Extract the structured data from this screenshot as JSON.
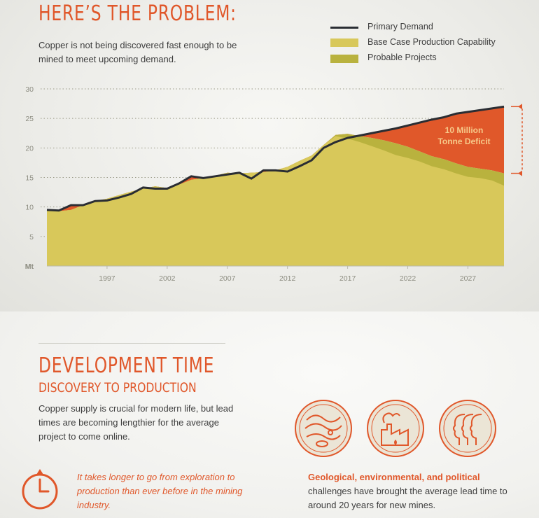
{
  "header": {
    "title": "HERE’S THE PROBLEM:",
    "intro": "Copper is not being discovered fast enough to be mined to meet upcoming demand."
  },
  "legend": [
    {
      "label": "Primary Demand",
      "kind": "line"
    },
    {
      "label": "Base Case Production Capability",
      "kind": "base"
    },
    {
      "label": "Probable Projects",
      "kind": "prob"
    }
  ],
  "chart_data": {
    "type": "area",
    "title": "",
    "xlabel": "",
    "ylabel": "Mt",
    "ylim": [
      0,
      30
    ],
    "xlim": [
      1992,
      2030
    ],
    "yticks": [
      5,
      10,
      15,
      20,
      25,
      30
    ],
    "xticks": [
      1997,
      2002,
      2007,
      2012,
      2017,
      2022,
      2027
    ],
    "grid": true,
    "grid_style": "dotted",
    "legend_position": "top-right",
    "colors": {
      "primary_demand": "#2a2d33",
      "base_case": "#d8c85a",
      "probable_projects": "#b9b23e",
      "deficit": "#e0582a"
    },
    "x": [
      1992,
      1993,
      1994,
      1995,
      1996,
      1997,
      1998,
      1999,
      2000,
      2001,
      2002,
      2003,
      2004,
      2005,
      2006,
      2007,
      2008,
      2009,
      2010,
      2011,
      2012,
      2013,
      2014,
      2015,
      2016,
      2017,
      2018,
      2019,
      2020,
      2021,
      2022,
      2023,
      2024,
      2025,
      2026,
      2027,
      2028,
      2029,
      2030
    ],
    "series": [
      {
        "name": "Primary Demand",
        "type": "line",
        "values": [
          9.5,
          9.4,
          10.3,
          10.3,
          11.0,
          11.1,
          11.6,
          12.2,
          13.3,
          13.1,
          13.1,
          14.0,
          15.2,
          14.9,
          15.2,
          15.5,
          15.8,
          14.8,
          16.2,
          16.2,
          16.0,
          16.9,
          17.9,
          20.0,
          21.0,
          21.7,
          22.1,
          22.5,
          22.9,
          23.3,
          23.8,
          24.3,
          24.8,
          25.2,
          25.8,
          26.1,
          26.4,
          26.7,
          27.0
        ]
      },
      {
        "name": "Probable Projects",
        "type": "area",
        "values": [
          9.5,
          9.3,
          9.5,
          10.3,
          11.0,
          11.4,
          12.0,
          12.6,
          13.1,
          13.5,
          13.2,
          13.8,
          14.6,
          14.9,
          15.3,
          15.8,
          15.7,
          15.8,
          15.9,
          16.2,
          16.8,
          17.8,
          18.7,
          20.5,
          22.2,
          22.4,
          22.0,
          21.7,
          21.3,
          20.8,
          20.2,
          19.4,
          18.6,
          18.1,
          17.4,
          16.8,
          16.5,
          16.2,
          15.7
        ]
      },
      {
        "name": "Base Case Production Capability",
        "type": "area",
        "values": [
          9.5,
          9.3,
          9.5,
          10.3,
          11.0,
          11.4,
          12.0,
          12.6,
          13.1,
          13.5,
          13.2,
          13.8,
          14.6,
          14.9,
          15.3,
          15.8,
          15.7,
          15.8,
          15.9,
          16.2,
          16.8,
          17.8,
          18.7,
          20.5,
          22.0,
          21.6,
          21.0,
          20.3,
          19.6,
          18.8,
          18.3,
          17.7,
          16.9,
          16.4,
          15.7,
          15.1,
          14.9,
          14.5,
          13.6
        ]
      }
    ],
    "annotations": [
      {
        "text": "10 Million",
        "line": 1
      },
      {
        "text": "Tonne Deficit",
        "line": 2
      }
    ],
    "deficit_range": [
      15.7,
      27.0
    ]
  },
  "development": {
    "title": "DEVELOPMENT TIME",
    "subtitle": "DISCOVERY TO PRODUCTION",
    "intro": "Copper supply is crucial for modern life, but lead times are becoming lengthier for the average project to come online.",
    "quote": "It takes longer to go from exploration to production than ever before in the mining industry.",
    "challenges_highlight": "Geological, environmental, and political",
    "challenges_rest": " challenges have brought the average lead time to around 20 years for new mines."
  },
  "icons": [
    "clock-icon",
    "topography-icon",
    "factory-icon",
    "people-profiles-icon"
  ]
}
